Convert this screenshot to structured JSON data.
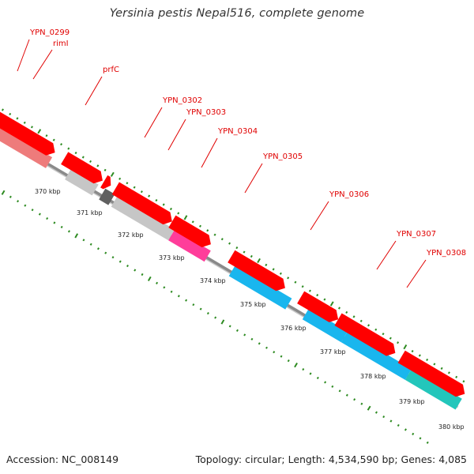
{
  "title": "Yersinia pestis Nepal516, complete genome",
  "footer": {
    "accession": "Accession: NC_008149",
    "topology": "Topology: circular; Length: 4,534,590 bp; Genes: 4,085"
  },
  "colors": {
    "background": "#ffffff",
    "backbone": "#8a8a8a",
    "backbone_shadow": "#c8c8c8",
    "cds_arrow": "#ff0000",
    "label": "#e00000",
    "tick": "#2e8b22",
    "gray_gene": "#c6c6c6",
    "pink_gene": "#ff3d9a",
    "salmon_gene": "#ee7b7b",
    "cyan_gene": "#19b6ee",
    "teal_gene": "#23c6bb",
    "dark_gene": "#606060"
  },
  "gene_labels": [
    "YPN_0299",
    "rimI",
    "prfC",
    "YPN_0302",
    "YPN_0303",
    "YPN_0304",
    "YPN_0305",
    "YPN_0306",
    "YPN_0307",
    "YPN_0308"
  ],
  "kbp_ticks": [
    "370 kbp",
    "371 kbp",
    "372 kbp",
    "373 kbp",
    "374 kbp",
    "375 kbp",
    "376 kbp",
    "377 kbp",
    "378 kbp",
    "379 kbp",
    "380 kbp"
  ]
}
